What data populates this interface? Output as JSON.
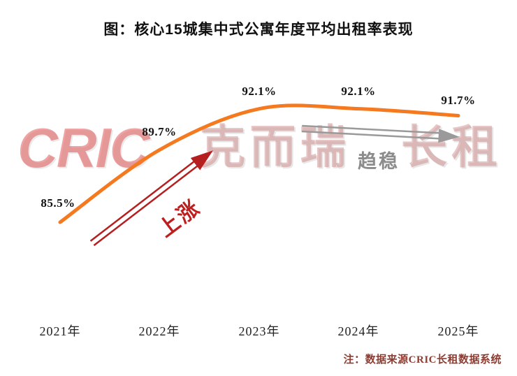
{
  "watermark": {
    "parts": [
      "CRIC",
      "克而瑞",
      "长租"
    ]
  },
  "footnote": "注：数据来源CRIC长租数据系统",
  "chart_data": {
    "type": "line",
    "title": "图：核心15城集中式公寓年度平均出租率表现",
    "categories": [
      "2021年",
      "2022年",
      "2023年",
      "2024年",
      "2025年"
    ],
    "values": [
      85.5,
      89.7,
      92.1,
      92.1,
      91.7
    ],
    "value_labels": [
      "85.5%",
      "89.7%",
      "92.1%",
      "92.1%",
      "91.7%"
    ],
    "unit": "%",
    "series_color": "#f4791f",
    "ylim": [
      84,
      94
    ],
    "grid": false,
    "legend": "none",
    "annotations": [
      {
        "text": "上涨",
        "direction": "up",
        "color": "#b51f1f"
      },
      {
        "text": "趋稳",
        "direction": "flat",
        "color": "#9a9a9a"
      }
    ],
    "note": "注：数据来源CRIC长租数据系统"
  }
}
